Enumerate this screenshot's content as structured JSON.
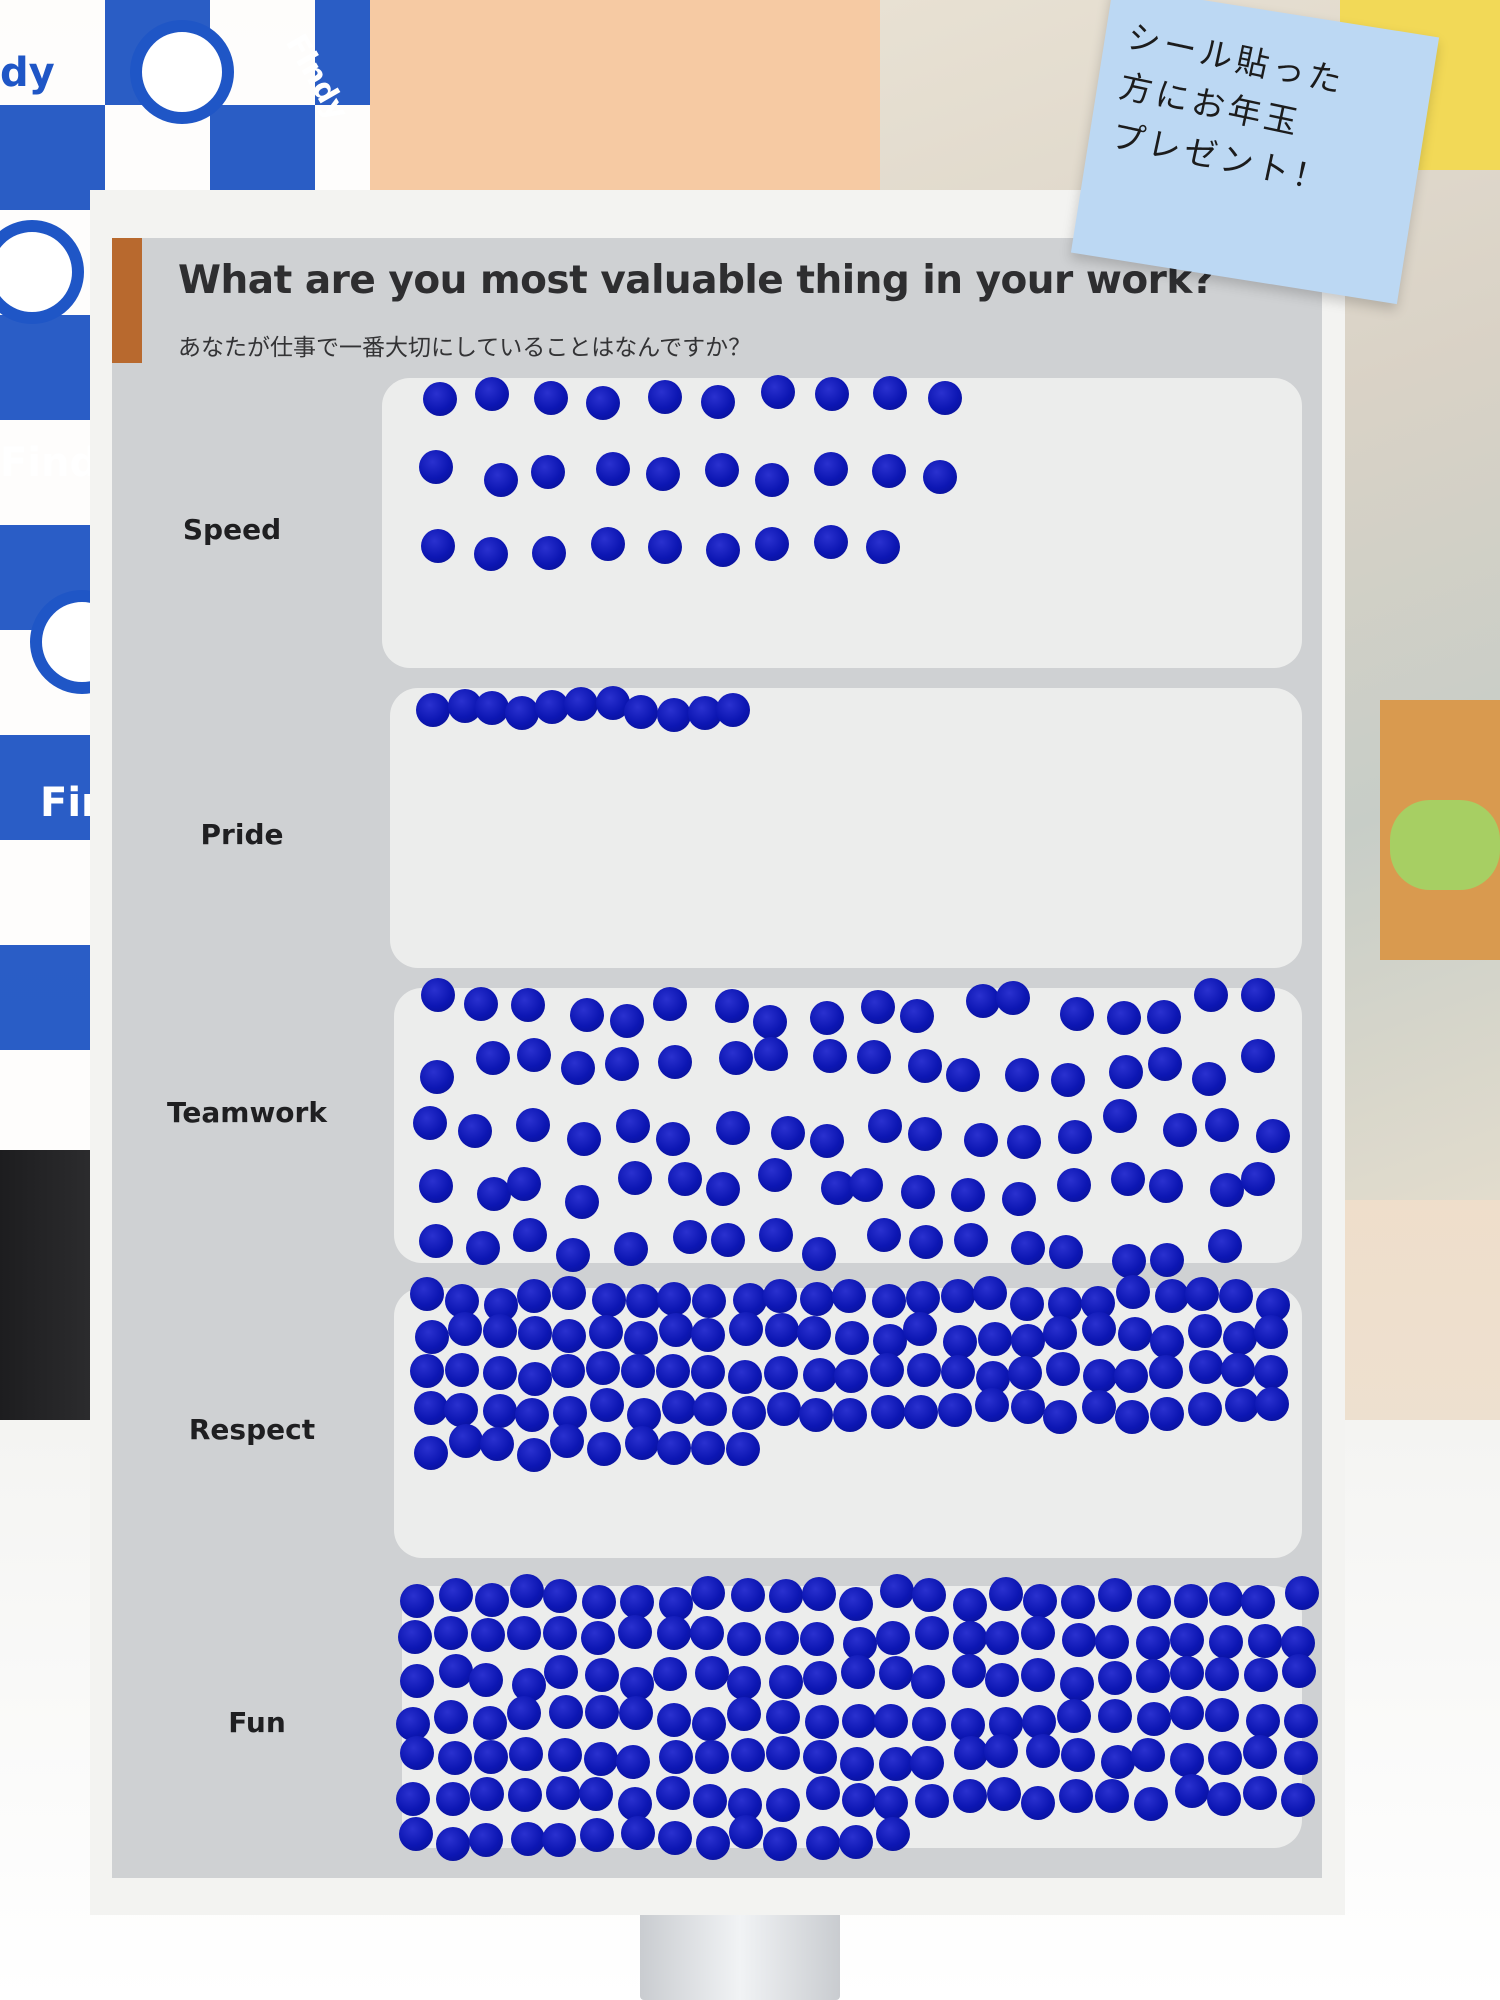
{
  "board": {
    "title": "What are you most valuable thing in your work?",
    "subtitle": "あなたが仕事で一番大切にしていることはなんですか？",
    "accent_color": "#b8692e",
    "sticker_color": "#0c16b3",
    "categories": [
      {
        "label": "Speed",
        "sticker_count": 29
      },
      {
        "label": "Pride",
        "sticker_count": 11
      },
      {
        "label": "Teamwork",
        "sticker_count": 89
      },
      {
        "label": "Respect",
        "sticker_count": 110
      },
      {
        "label": "Fun",
        "sticker_count": 164
      }
    ]
  },
  "sticky_note": {
    "lines": [
      "シール貼った",
      "方にお年玉",
      "プレゼント！"
    ],
    "color": "#bcd8f3"
  },
  "background": {
    "banner_brand": "Findy",
    "banner_brand_partial_top": "dy",
    "banner_brand_partial_mid": "Fin",
    "banner_icon": "findy-logo-icon"
  }
}
